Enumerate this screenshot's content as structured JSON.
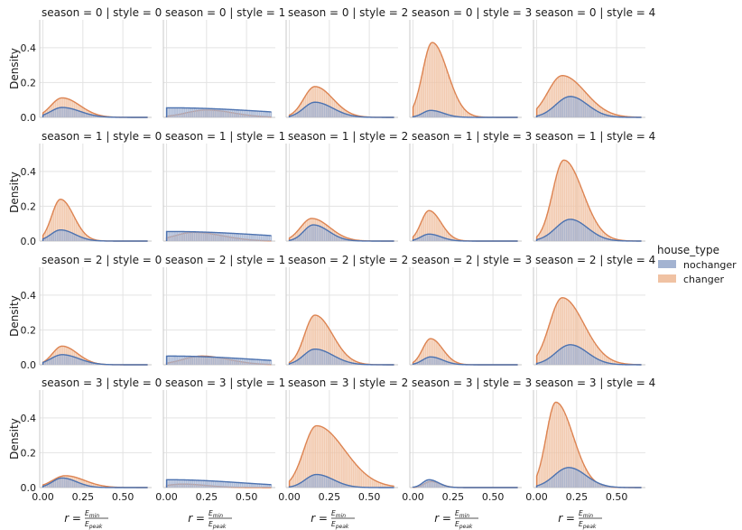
{
  "chart_data": {
    "type": "area",
    "description_free": true,
    "x_ticks": [
      "0.00",
      "0.25",
      "0.50"
    ],
    "x_tick_values": [
      0.0,
      0.25,
      0.5
    ],
    "y_ticks": [
      "0.0",
      "0.2",
      "0.4"
    ],
    "y_tick_values": [
      0.0,
      0.2,
      0.4
    ],
    "xlim": [
      -0.02,
      0.68
    ],
    "ylim": [
      0.0,
      0.56
    ],
    "ylabel": "Density",
    "xlabel": {
      "prefix": "r = ",
      "numerator_var": "E",
      "numerator_sub": "min",
      "denominator_var": "E",
      "denominator_sub": "peak"
    },
    "panel_title_template": "season = {s} | style = {t}",
    "legend": {
      "title": "house_type",
      "entries": [
        {
          "name": "nochanger",
          "color": "#4c72b0"
        },
        {
          "name": "changer",
          "color": "#dd8452"
        }
      ]
    },
    "series_colors": {
      "nochanger_fill": "#a3b3d1",
      "nochanger_line": "#4c72b0",
      "changer_fill": "#f0c2a3",
      "changer_line": "#dd8452"
    },
    "panels": [
      {
        "season": 0,
        "style": 0,
        "title": "season = 0 | style = 0",
        "nochanger": {
          "peak": 0.057,
          "mode": 0.12,
          "width": 0.07,
          "skew": 1.6
        },
        "changer": {
          "peak": 0.112,
          "mode": 0.12,
          "width": 0.07,
          "skew": 1.6
        }
      },
      {
        "season": 0,
        "style": 1,
        "title": "season = 0 | style = 1",
        "nochanger": {
          "peak": 0.055,
          "mode": 0.02,
          "width": 0.2,
          "skew": 3.0
        },
        "changer": {
          "peak": 0.042,
          "mode": 0.25,
          "width": 0.13,
          "skew": 1.3
        }
      },
      {
        "season": 0,
        "style": 2,
        "title": "season = 0 | style = 2",
        "nochanger": {
          "peak": 0.087,
          "mode": 0.16,
          "width": 0.07,
          "skew": 1.6
        },
        "changer": {
          "peak": 0.177,
          "mode": 0.16,
          "width": 0.07,
          "skew": 1.6
        }
      },
      {
        "season": 0,
        "style": 3,
        "title": "season = 0 | style = 3",
        "nochanger": {
          "peak": 0.04,
          "mode": 0.11,
          "width": 0.05,
          "skew": 1.6
        },
        "changer": {
          "peak": 0.43,
          "mode": 0.12,
          "width": 0.06,
          "skew": 1.6
        }
      },
      {
        "season": 0,
        "style": 4,
        "title": "season = 0 | style = 4",
        "nochanger": {
          "peak": 0.12,
          "mode": 0.21,
          "width": 0.09,
          "skew": 1.2
        },
        "changer": {
          "peak": 0.24,
          "mode": 0.16,
          "width": 0.09,
          "skew": 1.6
        }
      },
      {
        "season": 1,
        "style": 0,
        "title": "season = 1 | style = 0",
        "nochanger": {
          "peak": 0.064,
          "mode": 0.11,
          "width": 0.06,
          "skew": 1.5
        },
        "changer": {
          "peak": 0.24,
          "mode": 0.11,
          "width": 0.055,
          "skew": 1.5
        }
      },
      {
        "season": 1,
        "style": 1,
        "title": "season = 1 | style = 1",
        "nochanger": {
          "peak": 0.055,
          "mode": 0.02,
          "width": 0.2,
          "skew": 3.0
        },
        "changer": {
          "peak": 0.05,
          "mode": 0.17,
          "width": 0.12,
          "skew": 1.5
        }
      },
      {
        "season": 1,
        "style": 2,
        "title": "season = 1 | style = 2",
        "nochanger": {
          "peak": 0.093,
          "mode": 0.15,
          "width": 0.06,
          "skew": 1.6
        },
        "changer": {
          "peak": 0.13,
          "mode": 0.14,
          "width": 0.07,
          "skew": 1.6
        }
      },
      {
        "season": 1,
        "style": 3,
        "title": "season = 1 | style = 3",
        "nochanger": {
          "peak": 0.04,
          "mode": 0.1,
          "width": 0.05,
          "skew": 1.5
        },
        "changer": {
          "peak": 0.175,
          "mode": 0.1,
          "width": 0.05,
          "skew": 1.5
        }
      },
      {
        "season": 1,
        "style": 4,
        "title": "season = 1 | style = 4",
        "nochanger": {
          "peak": 0.125,
          "mode": 0.21,
          "width": 0.09,
          "skew": 1.2
        },
        "changer": {
          "peak": 0.465,
          "mode": 0.17,
          "width": 0.07,
          "skew": 1.7
        }
      },
      {
        "season": 2,
        "style": 0,
        "title": "season = 2 | style = 0",
        "nochanger": {
          "peak": 0.058,
          "mode": 0.12,
          "width": 0.07,
          "skew": 1.5
        },
        "changer": {
          "peak": 0.107,
          "mode": 0.12,
          "width": 0.06,
          "skew": 1.6
        }
      },
      {
        "season": 2,
        "style": 1,
        "title": "season = 2 | style = 1",
        "nochanger": {
          "peak": 0.05,
          "mode": 0.02,
          "width": 0.18,
          "skew": 3.0
        },
        "changer": {
          "peak": 0.05,
          "mode": 0.22,
          "width": 0.12,
          "skew": 1.4
        }
      },
      {
        "season": 2,
        "style": 2,
        "title": "season = 2 | style = 2",
        "nochanger": {
          "peak": 0.09,
          "mode": 0.16,
          "width": 0.07,
          "skew": 1.6
        },
        "changer": {
          "peak": 0.285,
          "mode": 0.16,
          "width": 0.065,
          "skew": 1.7
        }
      },
      {
        "season": 2,
        "style": 3,
        "title": "season = 2 | style = 3",
        "nochanger": {
          "peak": 0.045,
          "mode": 0.11,
          "width": 0.05,
          "skew": 1.5
        },
        "changer": {
          "peak": 0.15,
          "mode": 0.11,
          "width": 0.05,
          "skew": 1.5
        }
      },
      {
        "season": 2,
        "style": 4,
        "title": "season = 2 | style = 4",
        "nochanger": {
          "peak": 0.115,
          "mode": 0.21,
          "width": 0.09,
          "skew": 1.2
        },
        "changer": {
          "peak": 0.385,
          "mode": 0.16,
          "width": 0.08,
          "skew": 1.7
        }
      },
      {
        "season": 3,
        "style": 0,
        "title": "season = 3 | style = 0",
        "nochanger": {
          "peak": 0.055,
          "mode": 0.12,
          "width": 0.06,
          "skew": 1.5
        },
        "changer": {
          "peak": 0.068,
          "mode": 0.14,
          "width": 0.08,
          "skew": 1.5
        }
      },
      {
        "season": 3,
        "style": 1,
        "title": "season = 3 | style = 1",
        "nochanger": {
          "peak": 0.045,
          "mode": 0.02,
          "width": 0.15,
          "skew": 3.0
        },
        "changer": {
          "peak": 0.02,
          "mode": 0.1,
          "width": 0.1,
          "skew": 1.5
        }
      },
      {
        "season": 3,
        "style": 2,
        "title": "season = 3 | style = 2",
        "nochanger": {
          "peak": 0.075,
          "mode": 0.17,
          "width": 0.07,
          "skew": 1.5
        },
        "changer": {
          "peak": 0.355,
          "mode": 0.17,
          "width": 0.08,
          "skew": 2.2
        }
      },
      {
        "season": 3,
        "style": 3,
        "title": "season = 3 | style = 3",
        "nochanger": {
          "peak": 0.045,
          "mode": 0.1,
          "width": 0.04,
          "skew": 1.5
        },
        "changer": {
          "peak": 0.035,
          "mode": 0.11,
          "width": 0.04,
          "skew": 1.5
        }
      },
      {
        "season": 3,
        "style": 4,
        "title": "season = 3 | style = 4",
        "nochanger": {
          "peak": 0.115,
          "mode": 0.2,
          "width": 0.09,
          "skew": 1.2
        },
        "changer": {
          "peak": 0.49,
          "mode": 0.12,
          "width": 0.06,
          "skew": 1.8
        }
      }
    ]
  }
}
